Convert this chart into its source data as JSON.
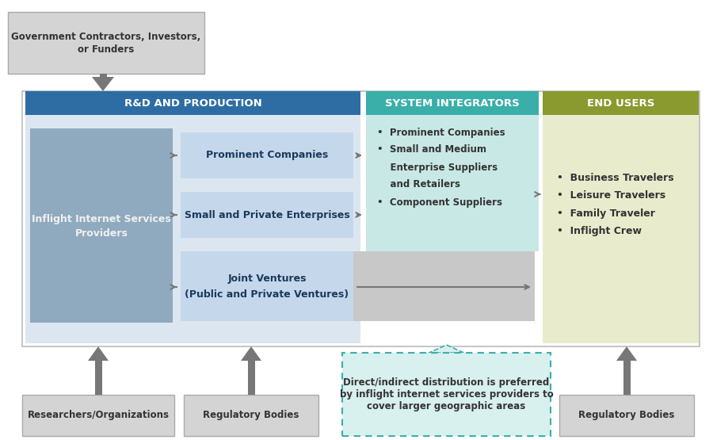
{
  "bg_color": "#ffffff",
  "title_rd": "R&D AND PRODUCTION",
  "title_si": "SYSTEM INTEGRATORS",
  "title_eu": "END USERS",
  "color_rd_header": "#2e6da4",
  "color_si_header": "#3aafa9",
  "color_eu_header": "#8a9a2e",
  "color_rd_bg": "#dce6f0",
  "color_si_bg": "#c8e8e5",
  "color_eu_bg": "#e8eccc",
  "color_isp_box": "#8faabf",
  "color_prominent": "#c5d8eb",
  "color_joint_inner": "#c5d8eb",
  "color_joint_outer": "#c8c8c8",
  "color_gov_box": "#d4d4d4",
  "color_bottom_box": "#d4d4d4",
  "color_callout_border": "#3aafa9",
  "color_callout_bg": "#d8f0ee",
  "color_callout_triangle": "#d8f0ee",
  "arrow_color": "#777777",
  "text_color_header": "#ffffff",
  "text_color_dark": "#333333",
  "text_color_bold": "#1a3a5c"
}
